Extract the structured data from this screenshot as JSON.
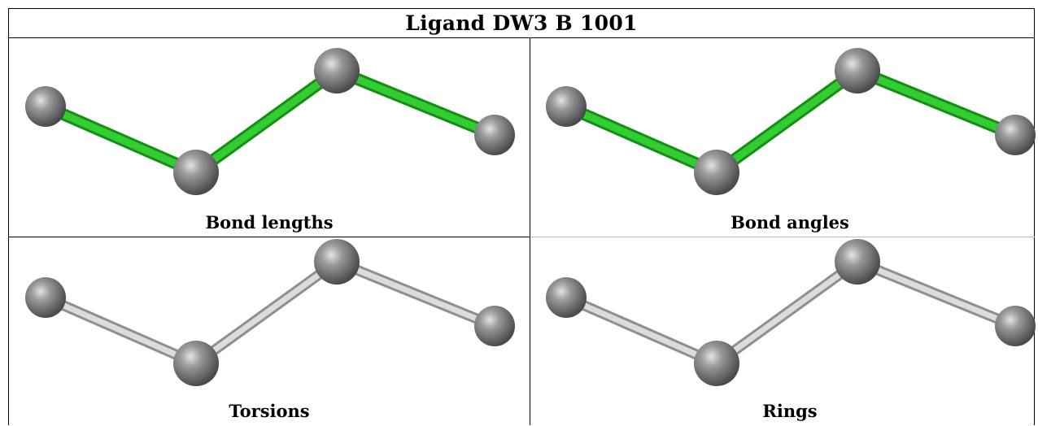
{
  "title": "Ligand DW3 B 1001",
  "panels": [
    {
      "caption": "Bond lengths",
      "bond_color": "#22bb22",
      "atom_color": "#777777"
    },
    {
      "caption": "Bond angles",
      "bond_color": "#22bb22",
      "atom_color": "#777777"
    },
    {
      "caption": "Torsions",
      "bond_color": "#bdbdbd",
      "atom_color": "#777777"
    },
    {
      "caption": "Rings",
      "bond_color": "#bdbdbd",
      "atom_color": "#777777"
    }
  ]
}
